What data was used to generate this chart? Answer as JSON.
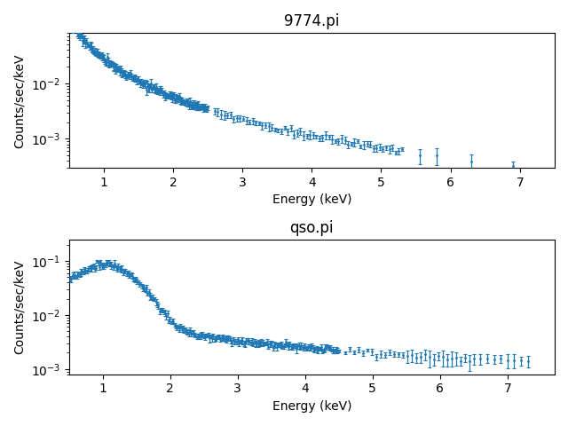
{
  "title1": "9774.pi",
  "title2": "qso.pi",
  "xlabel": "Energy (keV)",
  "ylabel": "Counts/sec/keV",
  "color": "#1f77b4",
  "plot1": {
    "xlim": [
      0.5,
      7.5
    ],
    "ylim": [
      0.0003,
      0.08
    ]
  },
  "plot2": {
    "xlim": [
      0.5,
      7.7
    ],
    "ylim": [
      0.0008,
      0.25
    ]
  },
  "figsize": [
    6.4,
    4.8
  ],
  "dpi": 100
}
